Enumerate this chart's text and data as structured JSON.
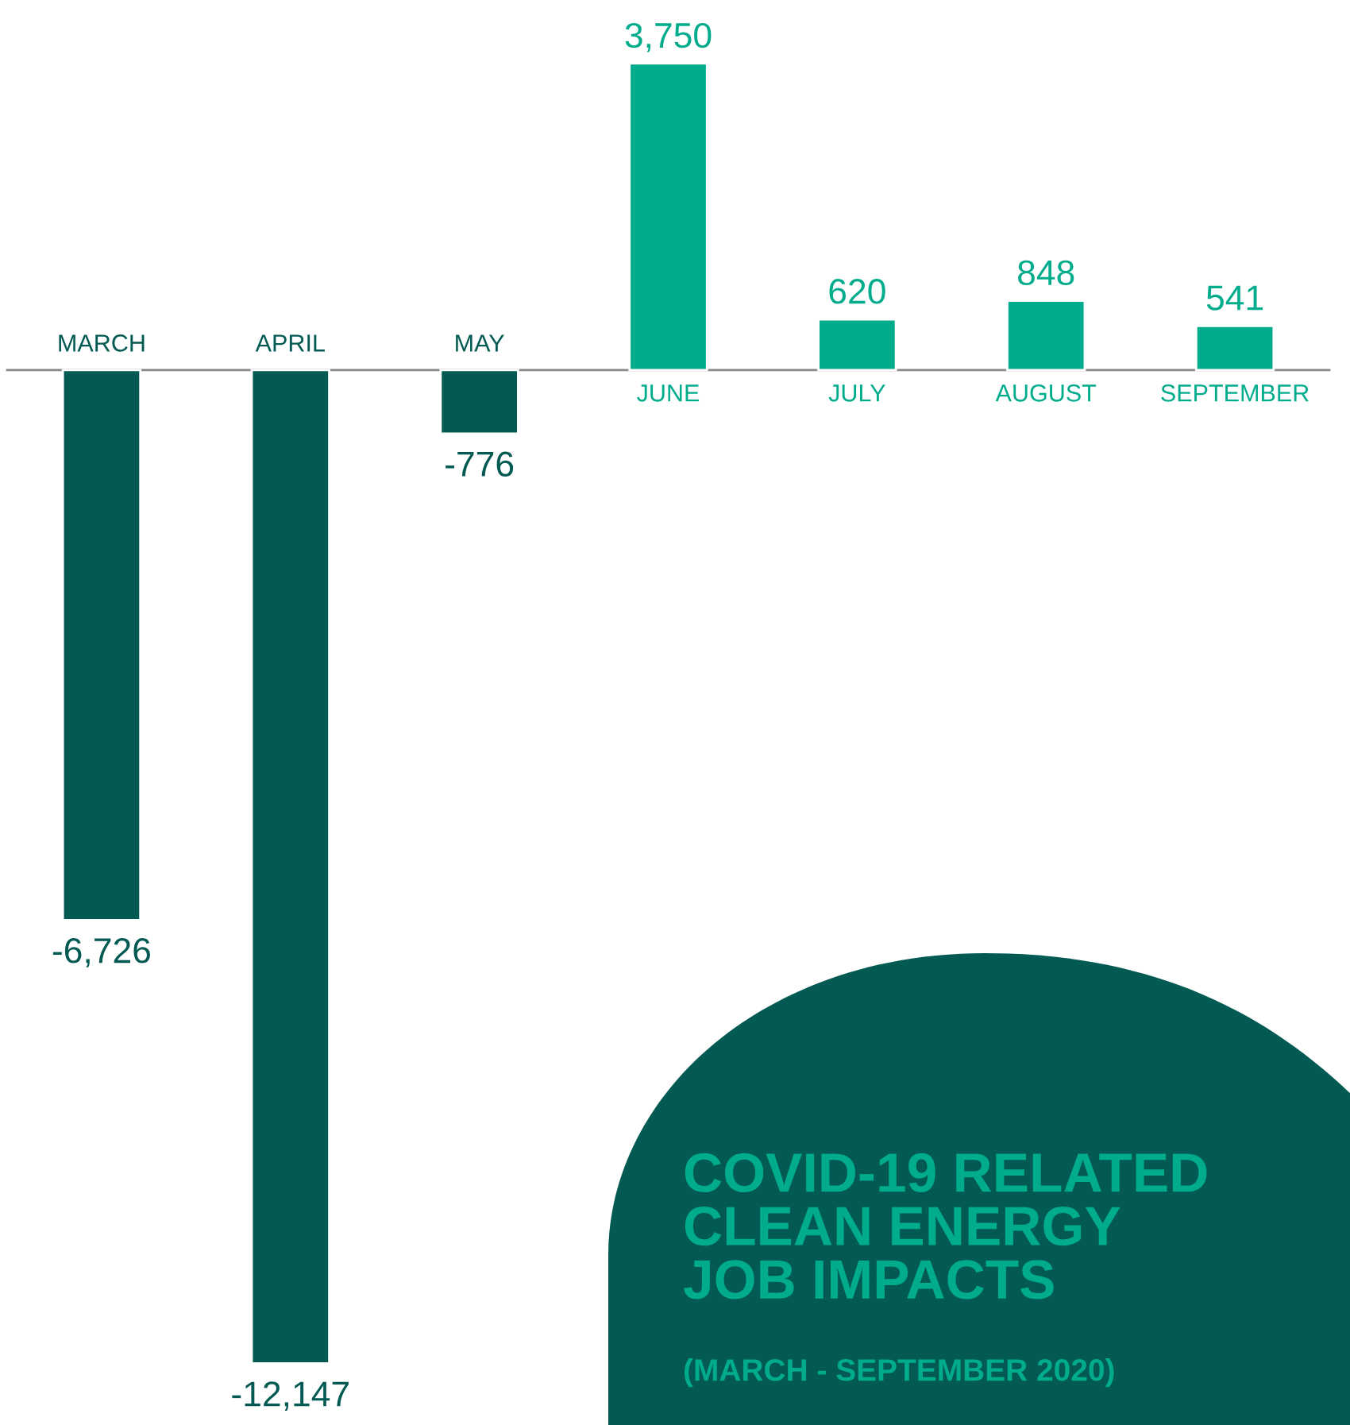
{
  "chart_data": {
    "type": "bar",
    "title": "COVID-19 RELATED\nCLEAN ENERGY\nJOB IMPACTS",
    "subtitle": "(MARCH - SEPTEMBER 2020)",
    "categories": [
      "MARCH",
      "APRIL",
      "MAY",
      "JUNE",
      "JULY",
      "AUGUST",
      "SEPTEMBER"
    ],
    "values": [
      -6726,
      -12147,
      -776,
      3750,
      620,
      848,
      541
    ],
    "value_labels": [
      "-6,726",
      "-12,147",
      "-776",
      "3,750",
      "620",
      "848",
      "541"
    ],
    "colors": [
      "#035a52",
      "#035a52",
      "#035a52",
      "#00ac8c",
      "#00ac8c",
      "#00ac8c",
      "#00ac8c"
    ]
  }
}
